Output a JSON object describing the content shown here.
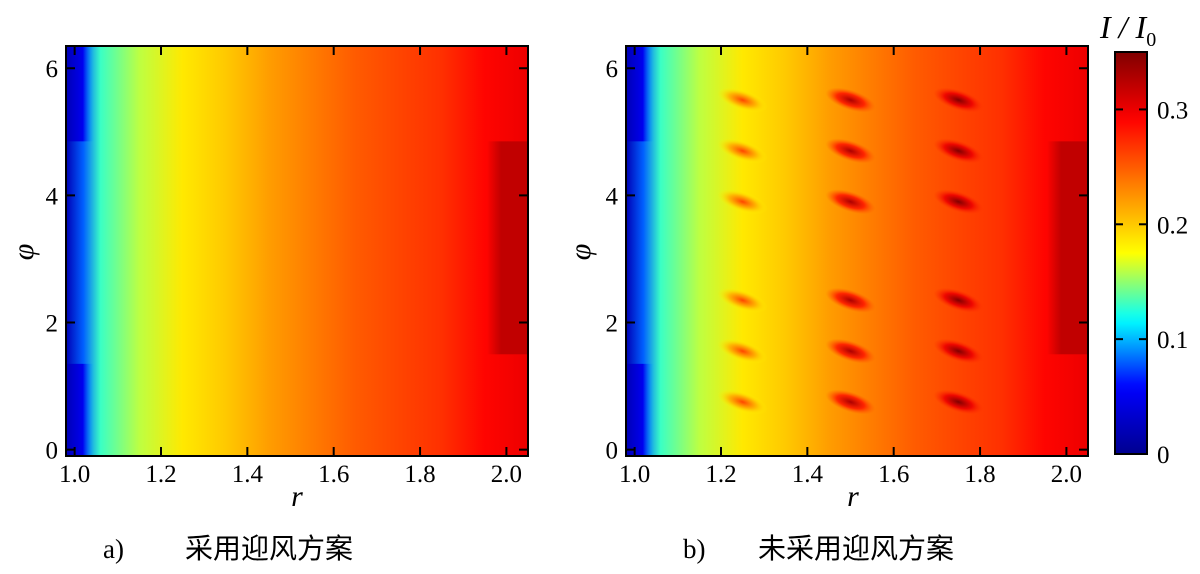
{
  "chart_data": [
    {
      "type": "heatmap",
      "panel_label": "a)",
      "caption": "采用迎风方案",
      "xlabel": "r",
      "ylabel": "φ",
      "xlim": [
        0.98,
        2.05
      ],
      "ylim": [
        -0.1,
        6.35
      ],
      "x_ticks": [
        "1.0",
        "1.2",
        "1.4",
        "1.6",
        "1.8",
        "2.0"
      ],
      "y_ticks": [
        "0",
        "2",
        "4",
        "6"
      ],
      "field": {
        "radial_profile": [
          {
            "r": 0.98,
            "v": 0.02
          },
          {
            "r": 1.02,
            "v": 0.08
          },
          {
            "r": 1.06,
            "v": 0.13
          },
          {
            "r": 1.15,
            "v": 0.16
          },
          {
            "r": 1.25,
            "v": 0.185
          },
          {
            "r": 1.35,
            "v": 0.2
          },
          {
            "r": 1.45,
            "v": 0.22
          },
          {
            "r": 1.55,
            "v": 0.235
          },
          {
            "r": 1.65,
            "v": 0.25
          },
          {
            "r": 1.75,
            "v": 0.26
          },
          {
            "r": 1.85,
            "v": 0.27
          },
          {
            "r": 1.95,
            "v": 0.29
          },
          {
            "r": 2.05,
            "v": 0.3
          }
        ],
        "inner_boundary_min": {
          "r_max": 1.02,
          "phi_ranges": [
            [
              -0.1,
              1.35
            ],
            [
              4.85,
              6.35
            ]
          ],
          "v": 0.02
        },
        "outer_boundary_max": {
          "r_min": 1.97,
          "phi_ranges": [
            [
              1.5,
              4.85
            ]
          ],
          "v": 0.32
        },
        "hot_spots": []
      }
    },
    {
      "type": "heatmap",
      "panel_label": "b)",
      "caption": "未采用迎风方案",
      "xlabel": "r",
      "ylabel": "φ",
      "xlim": [
        0.98,
        2.05
      ],
      "ylim": [
        -0.1,
        6.35
      ],
      "x_ticks": [
        "1.0",
        "1.2",
        "1.4",
        "1.6",
        "1.8",
        "2.0"
      ],
      "y_ticks": [
        "0",
        "2",
        "4",
        "6"
      ],
      "field": {
        "radial_profile": [
          {
            "r": 0.98,
            "v": 0.02
          },
          {
            "r": 1.02,
            "v": 0.08
          },
          {
            "r": 1.06,
            "v": 0.13
          },
          {
            "r": 1.15,
            "v": 0.16
          },
          {
            "r": 1.25,
            "v": 0.185
          },
          {
            "r": 1.35,
            "v": 0.2
          },
          {
            "r": 1.45,
            "v": 0.22
          },
          {
            "r": 1.55,
            "v": 0.235
          },
          {
            "r": 1.65,
            "v": 0.25
          },
          {
            "r": 1.75,
            "v": 0.26
          },
          {
            "r": 1.85,
            "v": 0.27
          },
          {
            "r": 1.95,
            "v": 0.29
          },
          {
            "r": 2.05,
            "v": 0.3
          }
        ],
        "inner_boundary_min": {
          "r_max": 1.02,
          "phi_ranges": [
            [
              -0.1,
              1.35
            ],
            [
              4.85,
              6.35
            ]
          ],
          "v": 0.02
        },
        "outer_boundary_max": {
          "r_min": 1.97,
          "phi_ranges": [
            [
              1.5,
              4.85
            ]
          ],
          "v": 0.32
        },
        "hot_spots": [
          {
            "r": 1.25,
            "phi": 5.5,
            "v": 0.26
          },
          {
            "r": 1.25,
            "phi": 4.7,
            "v": 0.26
          },
          {
            "r": 1.25,
            "phi": 3.9,
            "v": 0.26
          },
          {
            "r": 1.25,
            "phi": 2.35,
            "v": 0.26
          },
          {
            "r": 1.25,
            "phi": 1.55,
            "v": 0.26
          },
          {
            "r": 1.25,
            "phi": 0.75,
            "v": 0.26
          },
          {
            "r": 1.5,
            "phi": 5.5,
            "v": 0.33
          },
          {
            "r": 1.5,
            "phi": 4.7,
            "v": 0.33
          },
          {
            "r": 1.5,
            "phi": 3.9,
            "v": 0.33
          },
          {
            "r": 1.5,
            "phi": 2.35,
            "v": 0.33
          },
          {
            "r": 1.5,
            "phi": 1.55,
            "v": 0.33
          },
          {
            "r": 1.5,
            "phi": 0.75,
            "v": 0.33
          },
          {
            "r": 1.75,
            "phi": 5.5,
            "v": 0.35
          },
          {
            "r": 1.75,
            "phi": 4.7,
            "v": 0.35
          },
          {
            "r": 1.75,
            "phi": 3.9,
            "v": 0.35
          },
          {
            "r": 1.75,
            "phi": 2.35,
            "v": 0.35
          },
          {
            "r": 1.75,
            "phi": 1.55,
            "v": 0.35
          },
          {
            "r": 1.75,
            "phi": 0.75,
            "v": 0.35
          }
        ]
      }
    }
  ],
  "colorbar": {
    "title_main": "I / I",
    "title_sub": "0",
    "range": [
      0,
      0.35
    ],
    "ticks": [
      "0",
      "0.1",
      "0.2",
      "0.3"
    ],
    "colormap": "jet",
    "stops": [
      "#00008f",
      "#0000ff",
      "#00ffff",
      "#ffff00",
      "#ff8000",
      "#ff0000",
      "#800000"
    ]
  }
}
